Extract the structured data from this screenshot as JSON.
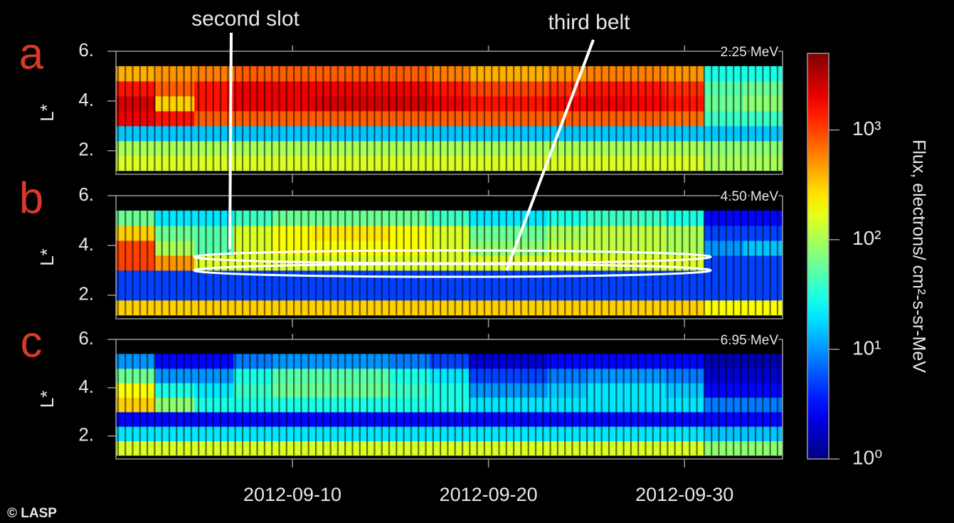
{
  "chart_data": [
    {
      "type": "heatmap",
      "letter": "a",
      "energy_label": "2.25 MeV",
      "ylabel": "L*",
      "xlim": [
        "2012-09-01",
        "2012-10-05"
      ],
      "ylim": [
        1.05,
        6
      ],
      "yticks": [
        {
          "value": 2,
          "label": "2."
        },
        {
          "value": 4,
          "label": "4."
        },
        {
          "value": 6,
          "label": "6."
        }
      ],
      "xbins": [
        "2012-09-01",
        "2012-09-03",
        "2012-09-05",
        "2012-09-07",
        "2012-09-09",
        "2012-09-11",
        "2012-09-13",
        "2012-09-15",
        "2012-09-17",
        "2012-09-19",
        "2012-09-21",
        "2012-09-23",
        "2012-09-25",
        "2012-09-27",
        "2012-09-29",
        "2012-10-01",
        "2012-10-03",
        "2012-10-05"
      ],
      "ybins": [
        1.2,
        1.8,
        2.4,
        3.0,
        3.6,
        4.2,
        4.8,
        5.4
      ],
      "values": [
        [
          150,
          150,
          150,
          150,
          150,
          150,
          150,
          150,
          150,
          150,
          150,
          150,
          150,
          150,
          150,
          100,
          100
        ],
        [
          100,
          100,
          100,
          100,
          100,
          100,
          100,
          100,
          100,
          100,
          100,
          100,
          100,
          100,
          100,
          80,
          80
        ],
        [
          15,
          15,
          15,
          15,
          15,
          15,
          15,
          15,
          15,
          15,
          15,
          15,
          15,
          15,
          15,
          15,
          15
        ],
        [
          2000,
          1500,
          800,
          800,
          800,
          800,
          800,
          800,
          800,
          800,
          800,
          800,
          800,
          800,
          700,
          40,
          40
        ],
        [
          2500,
          300,
          1500,
          2000,
          2000,
          2500,
          2500,
          2500,
          2000,
          1500,
          1500,
          1800,
          2000,
          1800,
          1500,
          60,
          80
        ],
        [
          1500,
          800,
          1500,
          2000,
          2000,
          2000,
          2000,
          2000,
          1500,
          1000,
          1000,
          1200,
          1500,
          1500,
          1200,
          50,
          60
        ],
        [
          400,
          500,
          600,
          800,
          800,
          800,
          800,
          800,
          600,
          400,
          400,
          500,
          600,
          600,
          500,
          30,
          30
        ]
      ]
    },
    {
      "type": "heatmap",
      "letter": "b",
      "energy_label": "4.50 MeV",
      "ylabel": "L*",
      "xlim": [
        "2012-09-01",
        "2012-10-05"
      ],
      "ylim": [
        1.05,
        6
      ],
      "yticks": [
        {
          "value": 2,
          "label": "2."
        },
        {
          "value": 4,
          "label": "4."
        },
        {
          "value": 6,
          "label": "6."
        }
      ],
      "xbins": [
        "2012-09-01",
        "2012-09-03",
        "2012-09-05",
        "2012-09-07",
        "2012-09-09",
        "2012-09-11",
        "2012-09-13",
        "2012-09-15",
        "2012-09-17",
        "2012-09-19",
        "2012-09-21",
        "2012-09-23",
        "2012-09-25",
        "2012-09-27",
        "2012-09-29",
        "2012-10-01",
        "2012-10-03",
        "2012-10-05"
      ],
      "ybins": [
        1.2,
        1.8,
        2.4,
        3.0,
        3.6,
        4.2,
        4.8,
        5.4
      ],
      "values": [
        [
          300,
          300,
          300,
          300,
          300,
          300,
          300,
          300,
          300,
          300,
          300,
          300,
          300,
          300,
          300,
          200,
          200
        ],
        [
          5,
          5,
          5,
          5,
          5,
          5,
          5,
          5,
          5,
          5,
          5,
          5,
          5,
          5,
          5,
          5,
          5
        ],
        [
          5,
          5,
          5,
          5,
          5,
          5,
          5,
          5,
          5,
          5,
          5,
          5,
          5,
          5,
          5,
          5,
          5
        ],
        [
          1000,
          500,
          150,
          150,
          150,
          150,
          150,
          150,
          150,
          150,
          150,
          150,
          150,
          150,
          150,
          5,
          5
        ],
        [
          1000,
          100,
          50,
          150,
          200,
          200,
          200,
          200,
          150,
          80,
          80,
          120,
          120,
          120,
          100,
          10,
          15
        ],
        [
          300,
          60,
          50,
          150,
          200,
          250,
          250,
          200,
          150,
          60,
          60,
          100,
          120,
          120,
          100,
          5,
          5
        ],
        [
          60,
          20,
          20,
          40,
          60,
          60,
          60,
          60,
          40,
          20,
          20,
          30,
          40,
          40,
          30,
          3,
          3
        ]
      ]
    },
    {
      "type": "heatmap",
      "letter": "c",
      "energy_label": "6.95 MeV",
      "ylabel": "L*",
      "xlim": [
        "2012-09-01",
        "2012-10-05"
      ],
      "ylim": [
        1.05,
        6
      ],
      "yticks": [
        {
          "value": 2,
          "label": "2."
        },
        {
          "value": 4,
          "label": "4."
        },
        {
          "value": 6,
          "label": "6."
        }
      ],
      "xticks": [
        "2012-09-10",
        "2012-09-20",
        "2012-09-30"
      ],
      "xbins": [
        "2012-09-01",
        "2012-09-03",
        "2012-09-05",
        "2012-09-07",
        "2012-09-09",
        "2012-09-11",
        "2012-09-13",
        "2012-09-15",
        "2012-09-17",
        "2012-09-19",
        "2012-09-21",
        "2012-09-23",
        "2012-09-25",
        "2012-09-27",
        "2012-09-29",
        "2012-10-01",
        "2012-10-03",
        "2012-10-05"
      ],
      "ybins": [
        1.2,
        1.8,
        2.4,
        3.0,
        3.6,
        4.2,
        4.8,
        5.4
      ],
      "values": [
        [
          150,
          150,
          150,
          150,
          150,
          150,
          150,
          150,
          150,
          150,
          150,
          150,
          150,
          150,
          150,
          80,
          80
        ],
        [
          20,
          20,
          20,
          20,
          20,
          20,
          20,
          20,
          20,
          20,
          20,
          20,
          20,
          20,
          20,
          15,
          15
        ],
        [
          3,
          3,
          3,
          3,
          3,
          3,
          3,
          3,
          3,
          3,
          3,
          3,
          3,
          3,
          3,
          3,
          3
        ],
        [
          300,
          80,
          30,
          30,
          30,
          30,
          30,
          30,
          30,
          20,
          20,
          20,
          20,
          20,
          20,
          8,
          8
        ],
        [
          200,
          30,
          20,
          40,
          60,
          60,
          60,
          40,
          30,
          10,
          10,
          15,
          20,
          20,
          15,
          3,
          3
        ],
        [
          60,
          10,
          10,
          30,
          50,
          50,
          50,
          30,
          20,
          5,
          5,
          8,
          10,
          10,
          8,
          2,
          2
        ],
        [
          10,
          3,
          3,
          8,
          10,
          10,
          10,
          8,
          5,
          2,
          2,
          3,
          3,
          3,
          3,
          1.5,
          1.5
        ]
      ]
    }
  ],
  "colorbar": {
    "label": "Flux, electrons/ cm²-s-sr-MeV",
    "clim": [
      1,
      5000
    ],
    "log": true,
    "colormap": "jet",
    "ticks": [
      {
        "value": 1,
        "label": "10⁰"
      },
      {
        "value": 10,
        "label": "10¹"
      },
      {
        "value": 100,
        "label": "10²"
      },
      {
        "value": 1000,
        "label": "10³"
      }
    ]
  },
  "annotations": [
    {
      "text": "second slot"
    },
    {
      "text": "third belt"
    }
  ],
  "credit": "© LASP"
}
